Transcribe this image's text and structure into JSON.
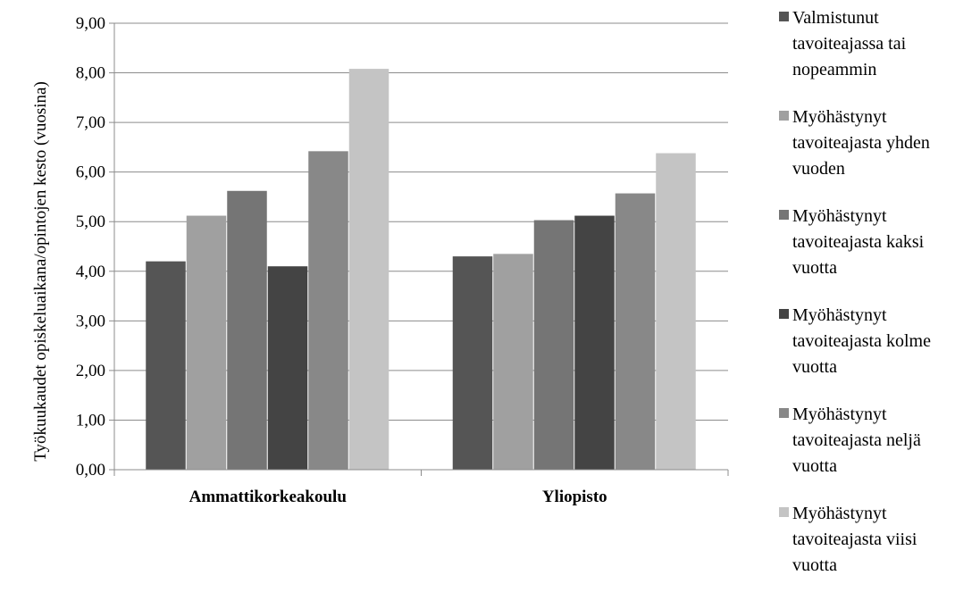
{
  "chart_data": {
    "type": "bar",
    "categories": [
      "Ammattikorkeakoulu",
      "Yliopisto"
    ],
    "ylabel": "Työkuukaudet opiskeluaikana/opintojen kesto (vuosina)",
    "xlabel": "",
    "ylim": [
      0,
      9
    ],
    "yticks": [
      "0,00",
      "1,00",
      "2,00",
      "3,00",
      "4,00",
      "5,00",
      "6,00",
      "7,00",
      "8,00",
      "9,00"
    ],
    "grid": true,
    "legend_position": "right",
    "series": [
      {
        "name": "Valmistunut tavoiteajassa tai nopeammin",
        "values": [
          4.2,
          4.3
        ],
        "color": "#555555"
      },
      {
        "name": "Myöhästynyt tavoiteajasta yhden vuoden",
        "values": [
          5.12,
          4.35
        ],
        "color": "#a0a0a0"
      },
      {
        "name": "Myöhästynyt tavoiteajasta kaksi vuotta",
        "values": [
          5.62,
          5.03
        ],
        "color": "#757575"
      },
      {
        "name": "Myöhästynyt tavoiteajasta kolme vuotta",
        "values": [
          4.1,
          5.12
        ],
        "color": "#444444"
      },
      {
        "name": "Myöhästynyt tavoiteajasta neljä vuotta",
        "values": [
          6.42,
          5.57
        ],
        "color": "#888888"
      },
      {
        "name": "Myöhästynyt tavoiteajasta viisi vuotta",
        "values": [
          8.08,
          6.38
        ],
        "color": "#c4c4c4"
      }
    ]
  },
  "legend": {
    "items": [
      "Valmistunut\ntavoiteajassa tai\nnopeammin",
      "Myöhästynyt\ntavoiteajasta yhden\nvuoden",
      "Myöhästynyt\ntavoiteajasta kaksi\nvuotta",
      "Myöhästynyt\ntavoiteajasta kolme\nvuotta",
      "Myöhästynyt\ntavoiteajasta neljä\nvuotta",
      "Myöhästynyt\ntavoiteajasta viisi\nvuotta"
    ]
  }
}
